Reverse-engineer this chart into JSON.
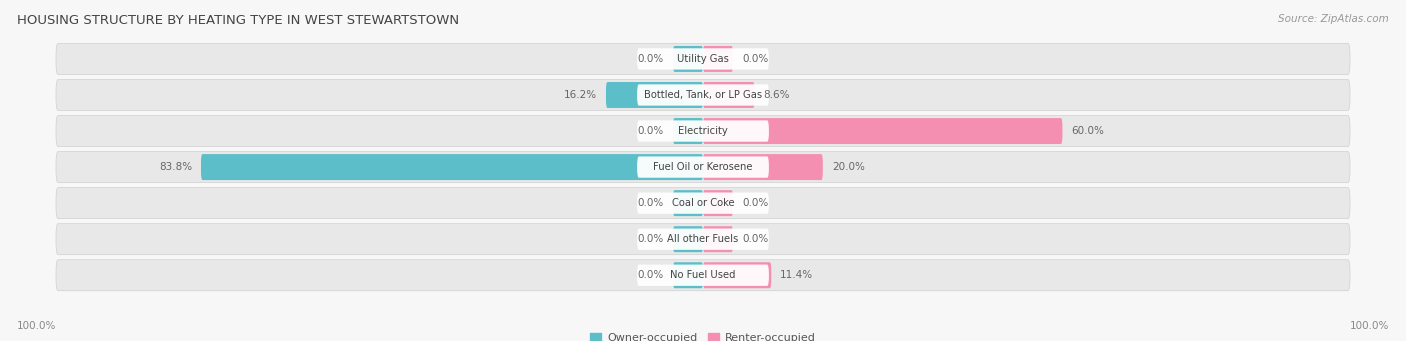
{
  "title": "HOUSING STRUCTURE BY HEATING TYPE IN WEST STEWARTSTOWN",
  "source": "Source: ZipAtlas.com",
  "categories": [
    "Utility Gas",
    "Bottled, Tank, or LP Gas",
    "Electricity",
    "Fuel Oil or Kerosene",
    "Coal or Coke",
    "All other Fuels",
    "No Fuel Used"
  ],
  "owner_values": [
    0.0,
    16.2,
    0.0,
    83.8,
    0.0,
    0.0,
    0.0
  ],
  "renter_values": [
    0.0,
    8.6,
    60.0,
    20.0,
    0.0,
    0.0,
    11.4
  ],
  "owner_color": "#5bbec9",
  "renter_color": "#f48fb1",
  "row_bg_color": "#e8e8e8",
  "fig_bg_color": "#f7f7f7",
  "label_color": "#666666",
  "axis_label_left": "100.0%",
  "axis_label_right": "100.0%",
  "legend_owner": "Owner-occupied",
  "legend_renter": "Renter-occupied",
  "max_value": 100.0,
  "min_bar_stub": 5.0
}
